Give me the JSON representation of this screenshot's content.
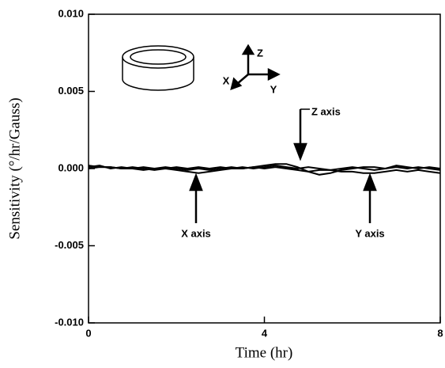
{
  "chart_data": {
    "type": "line",
    "xlabel": "Time (hr)",
    "ylabel": "Sensitivity (°/hr/Gauss)",
    "x": [
      0,
      0.25,
      0.5,
      0.75,
      1,
      1.25,
      1.5,
      1.75,
      2,
      2.25,
      2.5,
      2.75,
      3,
      3.25,
      3.5,
      3.75,
      4,
      4.25,
      4.5,
      4.75,
      5,
      5.25,
      5.5,
      5.75,
      6,
      6.25,
      6.5,
      6.75,
      7,
      7.25,
      7.5,
      7.75,
      8
    ],
    "series": [
      {
        "name": "X axis",
        "color": "#000000",
        "values": [
          0.0002,
          0.0001,
          0.0001,
          0,
          0.0001,
          0,
          -0.0001,
          0,
          -0.0001,
          -0.0002,
          -0.0003,
          -0.0002,
          -0.0001,
          0,
          0.0001,
          0,
          0.0001,
          0.0002,
          0.0001,
          0,
          0.0001,
          0,
          -0.0001,
          0,
          0.0001,
          0,
          -0.0001,
          0,
          0.0001,
          0,
          0.0001,
          0,
          -0.0001
        ]
      },
      {
        "name": "Y axis",
        "color": "#000000",
        "values": [
          0.0001,
          0.0002,
          0,
          0.0001,
          0,
          -0.0001,
          0,
          0.0001,
          0,
          -0.0001,
          0,
          -0.0001,
          0,
          0.0001,
          0,
          0.0001,
          0,
          0.0001,
          0,
          -0.0001,
          -0.0002,
          -0.0001,
          -0.0001,
          -0.0002,
          -0.0002,
          -0.0003,
          -0.0003,
          -0.0002,
          -0.0001,
          -0.0002,
          -0.0001,
          -0.0002,
          -0.0003
        ]
      },
      {
        "name": "Z axis",
        "color": "#000000",
        "values": [
          0,
          0.0001,
          0.0001,
          0,
          0,
          0.0001,
          0,
          0,
          0.0001,
          0,
          0.0001,
          0,
          0.0001,
          0,
          0,
          0.0001,
          0.0002,
          0.0003,
          0.0003,
          0.0001,
          -0.0002,
          -0.0004,
          -0.0003,
          -0.0001,
          0,
          0.0001,
          0.0001,
          0,
          0.0002,
          0.0001,
          0,
          0.0001,
          0
        ]
      }
    ],
    "inset_labels": [
      "Z",
      "X",
      "Y"
    ],
    "xlim": [
      0,
      8
    ],
    "xticks": [
      0,
      4,
      8
    ],
    "ylim": [
      -0.01,
      0.01
    ],
    "yticks": [
      {
        "value": -0.01,
        "label": "-0.010"
      },
      -0.005,
      {
        "value": 0,
        "label": "0.000"
      },
      0.005,
      {
        "value": 0.01,
        "label": "0.010"
      }
    ]
  }
}
